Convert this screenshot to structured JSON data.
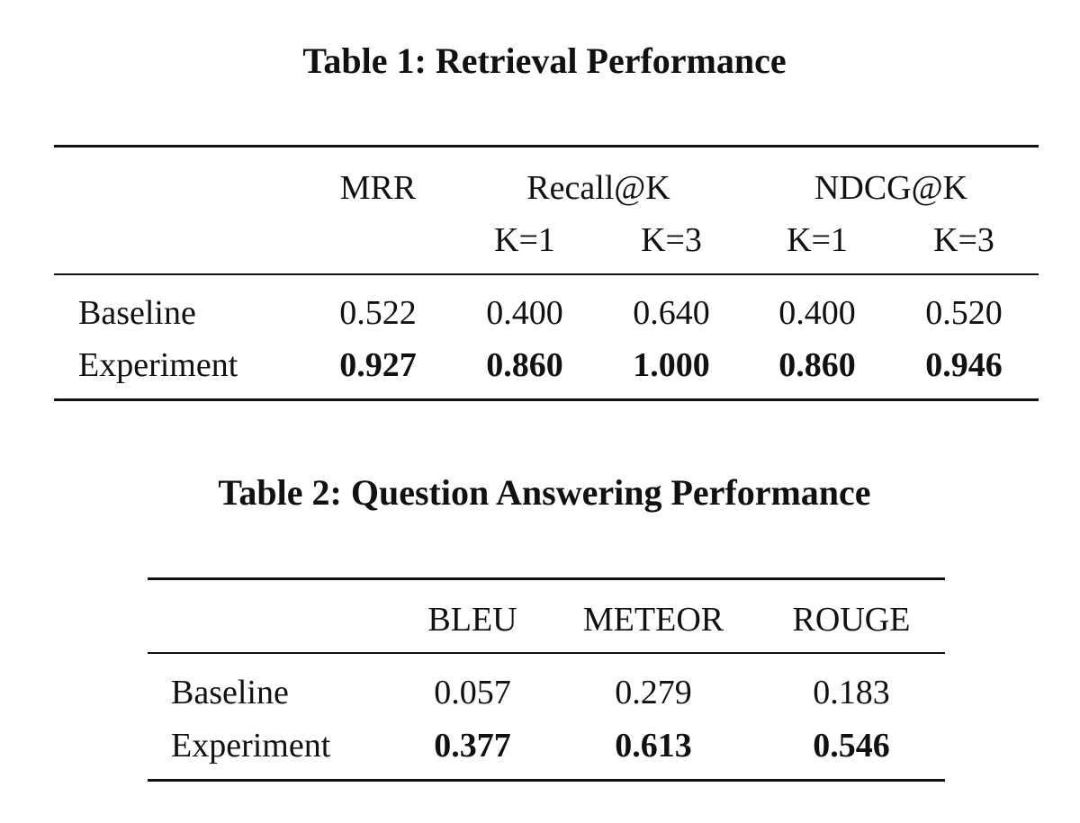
{
  "table1": {
    "caption": "Table 1: Retrieval Performance",
    "header": {
      "mrr": "MRR",
      "recall": "Recall@K",
      "ndcg": "NDCG@K",
      "sub": [
        "K=1",
        "K=3",
        "K=1",
        "K=3"
      ]
    },
    "rows": [
      {
        "label": "Baseline",
        "values": [
          "0.522",
          "0.400",
          "0.640",
          "0.400",
          "0.520"
        ]
      },
      {
        "label": "Experiment",
        "values": [
          "0.927",
          "0.860",
          "1.000",
          "0.860",
          "0.946"
        ]
      }
    ]
  },
  "table2": {
    "caption": "Table 2: Question Answering Performance",
    "header": [
      "BLEU",
      "METEOR",
      "ROUGE"
    ],
    "rows": [
      {
        "label": "Baseline",
        "values": [
          "0.057",
          "0.279",
          "0.183"
        ]
      },
      {
        "label": "Experiment",
        "values": [
          "0.377",
          "0.613",
          "0.546"
        ]
      }
    ]
  }
}
